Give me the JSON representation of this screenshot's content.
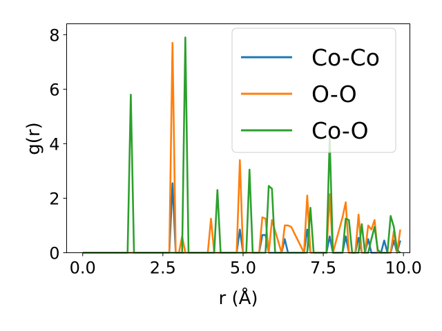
{
  "chart_data": {
    "type": "line",
    "title": "",
    "xlabel": "r (Å)",
    "ylabel": "g(r)",
    "xlim": [
      -0.5,
      10.2
    ],
    "ylim": [
      0,
      8.4
    ],
    "xticks": [
      0.0,
      2.5,
      5.0,
      7.5,
      10.0
    ],
    "xtick_labels": [
      "0.0",
      "2.5",
      "5.0",
      "7.5",
      "10.0"
    ],
    "yticks": [
      0,
      2,
      4,
      6,
      8
    ],
    "ytick_labels": [
      "0",
      "2",
      "4",
      "6",
      "8"
    ],
    "grid": false,
    "legend_position": "top-right",
    "series": [
      {
        "name": "Co-Co",
        "color": "#1f77b4",
        "x": [
          0.0,
          2.7,
          2.8,
          2.9,
          4.8,
          4.9,
          5.0,
          5.5,
          5.6,
          5.7,
          5.8,
          6.2,
          6.3,
          6.4,
          6.9,
          7.0,
          7.1,
          7.6,
          7.7,
          7.8,
          8.1,
          8.2,
          8.3,
          8.5,
          8.6,
          8.7,
          8.8,
          8.9,
          9.0,
          9.1,
          9.3,
          9.4,
          9.5,
          9.6,
          9.7,
          9.8,
          9.9
        ],
        "y": [
          0,
          0,
          2.55,
          0,
          0,
          0.85,
          0,
          0,
          0.65,
          0.65,
          0,
          0,
          0.5,
          0,
          0,
          0.85,
          0,
          0,
          0.6,
          0,
          0,
          0.6,
          0,
          0,
          0.55,
          0,
          0,
          0.5,
          0,
          0,
          0,
          0.45,
          0,
          0,
          0.45,
          0,
          0.45
        ]
      },
      {
        "name": "O-O",
        "color": "#ff7f0e",
        "x": [
          0.0,
          2.7,
          2.8,
          2.9,
          3.0,
          3.1,
          3.2,
          3.9,
          4.0,
          4.1,
          4.8,
          4.9,
          5.0,
          5.5,
          5.6,
          5.7,
          5.8,
          5.9,
          6.2,
          6.3,
          6.4,
          6.5,
          6.9,
          7.0,
          7.1,
          7.6,
          7.7,
          7.8,
          8.1,
          8.2,
          8.3,
          8.5,
          8.6,
          8.7,
          8.8,
          8.9,
          9.0,
          9.1,
          9.2,
          9.3,
          9.6,
          9.7,
          9.8,
          9.9
        ],
        "y": [
          0,
          0,
          7.7,
          0,
          0,
          0.6,
          0,
          0,
          1.25,
          0,
          0,
          3.4,
          0,
          0,
          1.3,
          1.25,
          0,
          1.2,
          0,
          1.0,
          1.0,
          0.95,
          0,
          2.1,
          0,
          0,
          2.15,
          0,
          1.3,
          1.85,
          0,
          0,
          1.4,
          0,
          0,
          1.0,
          0.85,
          1.2,
          0,
          0,
          0,
          0.8,
          0,
          0.85
        ]
      },
      {
        "name": "Co-O",
        "color": "#2ca02c",
        "x": [
          0.0,
          1.4,
          1.5,
          1.6,
          3.1,
          3.2,
          3.3,
          4.1,
          4.2,
          4.3,
          5.1,
          5.2,
          5.3,
          5.7,
          5.8,
          5.9,
          6.0,
          7.0,
          7.1,
          7.2,
          7.6,
          7.7,
          7.8,
          8.1,
          8.2,
          8.3,
          8.4,
          8.6,
          8.7,
          8.8,
          8.9,
          9.0,
          9.1,
          9.2,
          9.3,
          9.5,
          9.6,
          9.7,
          9.8,
          9.9
        ],
        "y": [
          0,
          0,
          5.8,
          0,
          0,
          7.9,
          0,
          0,
          2.3,
          0,
          0,
          3.05,
          0,
          0,
          2.45,
          2.35,
          0,
          0,
          1.65,
          0,
          0,
          4.2,
          0,
          0,
          1.25,
          1.2,
          0,
          0,
          1.05,
          0,
          0,
          0.5,
          0.95,
          0.1,
          0,
          0,
          1.35,
          0.95,
          0.1,
          0
        ]
      }
    ]
  }
}
